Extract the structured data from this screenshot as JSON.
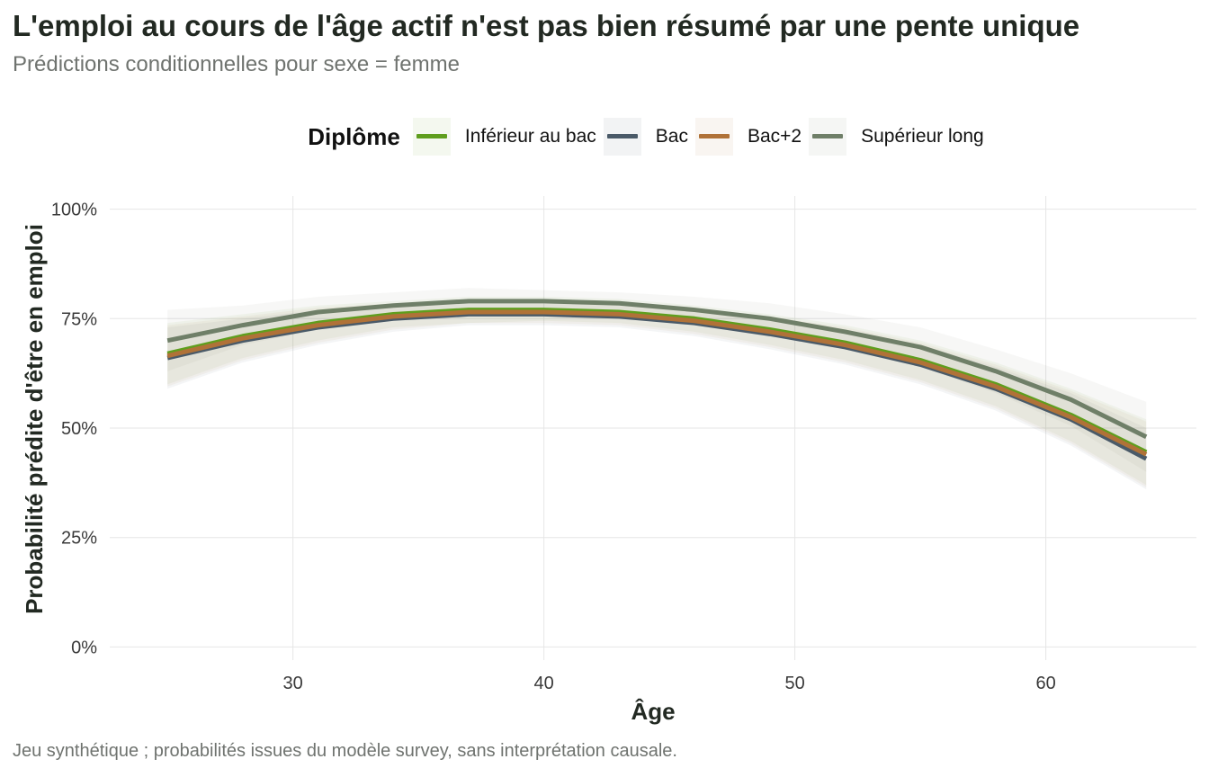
{
  "title": "L'emploi au cours de l'âge actif n'est pas bien résumé par une pente unique",
  "subtitle": "Prédictions conditionnelles pour sexe = femme",
  "caption": "Jeu synthétique ; probabilités issues du modèle survey, sans interprétation causale.",
  "legend": {
    "title": "Diplôme",
    "items": [
      {
        "label": "Inférieur au bac",
        "color": "#5f9e1e"
      },
      {
        "label": "Bac",
        "color": "#4a5a68"
      },
      {
        "label": "Bac+2",
        "color": "#b07238"
      },
      {
        "label": "Supérieur long",
        "color": "#6f7f68"
      }
    ]
  },
  "chart_data": {
    "type": "line",
    "xlabel": "Âge",
    "ylabel": "Probabilité prédite d'être en emploi",
    "xlim": [
      22.7,
      66
    ],
    "ylim": [
      -0.03,
      1.03
    ],
    "x_ticks": [
      30,
      40,
      50,
      60
    ],
    "x_tick_labels": [
      "30",
      "40",
      "50",
      "60"
    ],
    "y_ticks": [
      0,
      0.25,
      0.5,
      0.75,
      1.0
    ],
    "y_tick_labels": [
      "0%",
      "25%",
      "50%",
      "75%",
      "100%"
    ],
    "grid": true,
    "legend_position": "top",
    "x": [
      25,
      28,
      31,
      34,
      37,
      40,
      43,
      46,
      49,
      52,
      55,
      58,
      61,
      64
    ],
    "series": [
      {
        "name": "Inférieur au bac",
        "color": "#5f9e1e",
        "values": [
          0.67,
          0.71,
          0.74,
          0.76,
          0.77,
          0.77,
          0.765,
          0.75,
          0.725,
          0.695,
          0.655,
          0.6,
          0.53,
          0.445
        ],
        "lower": [
          0.6,
          0.66,
          0.7,
          0.73,
          0.74,
          0.745,
          0.74,
          0.72,
          0.69,
          0.655,
          0.61,
          0.55,
          0.47,
          0.37
        ],
        "upper": [
          0.74,
          0.76,
          0.78,
          0.79,
          0.8,
          0.8,
          0.795,
          0.78,
          0.76,
          0.735,
          0.7,
          0.65,
          0.59,
          0.52
        ]
      },
      {
        "name": "Bac",
        "color": "#4a5a68",
        "values": [
          0.66,
          0.7,
          0.73,
          0.75,
          0.76,
          0.76,
          0.755,
          0.74,
          0.715,
          0.685,
          0.645,
          0.59,
          0.52,
          0.43
        ],
        "lower": [
          0.59,
          0.65,
          0.69,
          0.72,
          0.735,
          0.735,
          0.73,
          0.71,
          0.68,
          0.645,
          0.6,
          0.54,
          0.46,
          0.36
        ],
        "upper": [
          0.73,
          0.75,
          0.77,
          0.78,
          0.785,
          0.785,
          0.78,
          0.77,
          0.75,
          0.725,
          0.69,
          0.64,
          0.58,
          0.5
        ]
      },
      {
        "name": "Bac+2",
        "color": "#b07238",
        "values": [
          0.665,
          0.705,
          0.735,
          0.755,
          0.765,
          0.765,
          0.76,
          0.745,
          0.72,
          0.69,
          0.65,
          0.595,
          0.525,
          0.44
        ],
        "lower": [
          0.595,
          0.655,
          0.695,
          0.725,
          0.74,
          0.74,
          0.735,
          0.715,
          0.685,
          0.65,
          0.605,
          0.545,
          0.465,
          0.365
        ],
        "upper": [
          0.735,
          0.755,
          0.775,
          0.785,
          0.79,
          0.79,
          0.785,
          0.775,
          0.755,
          0.73,
          0.695,
          0.645,
          0.585,
          0.515
        ]
      },
      {
        "name": "Supérieur long",
        "color": "#6f7f68",
        "values": [
          0.7,
          0.735,
          0.765,
          0.78,
          0.79,
          0.79,
          0.785,
          0.77,
          0.75,
          0.72,
          0.685,
          0.63,
          0.565,
          0.48
        ],
        "lower": [
          0.63,
          0.69,
          0.725,
          0.75,
          0.76,
          0.765,
          0.755,
          0.74,
          0.715,
          0.68,
          0.64,
          0.58,
          0.505,
          0.4
        ],
        "upper": [
          0.77,
          0.78,
          0.8,
          0.81,
          0.82,
          0.815,
          0.81,
          0.8,
          0.785,
          0.76,
          0.73,
          0.68,
          0.625,
          0.56
        ]
      }
    ]
  }
}
